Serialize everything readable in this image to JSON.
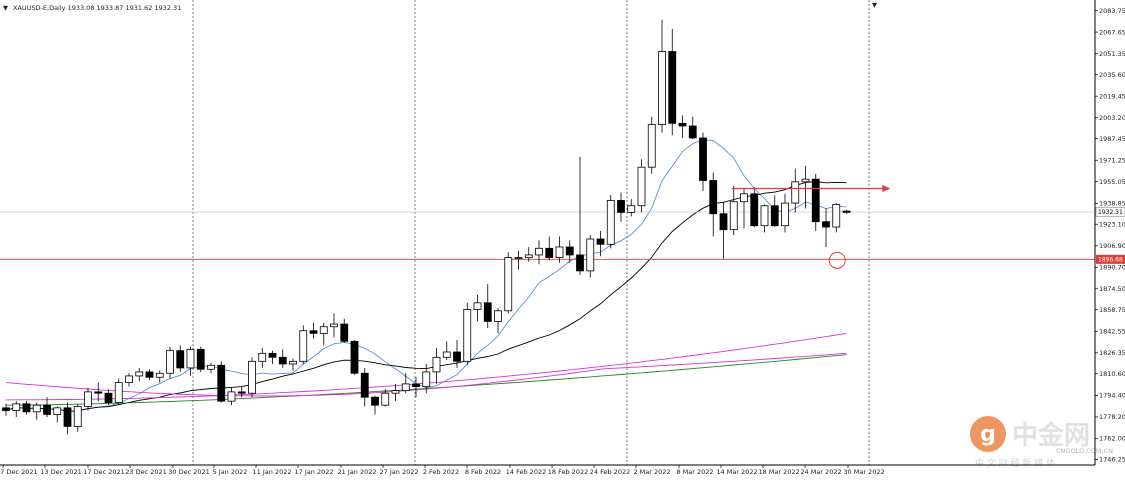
{
  "header": {
    "arrow": "▼",
    "title": "XAUUSD-E,Daily  1933.08 1933.87 1931.62 1932.31"
  },
  "price_tags": {
    "current": "1932.31",
    "support": "1896.68"
  },
  "watermark": {
    "name": "中金网",
    "domain": "CNGOLD.COM.CN",
    "slogan": "中 文 财 经 新 媒 体"
  },
  "colors": {
    "background": "#ffffff",
    "candle": "#000000",
    "sma_fast": "#5b8fd6",
    "sma_slow": "#000000",
    "ma_green": "#1e8a1e",
    "ma_magenta": "#d633d6",
    "support_line": "#e03a3a",
    "logo_orange": "#e8742a"
  },
  "chart_data": {
    "type": "candlestick",
    "symbol": "XAUUSD-E",
    "timeframe": "Daily",
    "ohlc_header": {
      "open": 1933.08,
      "high": 1933.87,
      "low": 1931.62,
      "close": 1932.31
    },
    "y_ticks": [
      2083.75,
      2067.65,
      2051.35,
      2035.6,
      2019.45,
      2003.2,
      1987.45,
      1971.25,
      1955.05,
      1938.85,
      1923.1,
      1906.9,
      1890.7,
      1874.5,
      1858.75,
      1842.55,
      1826.35,
      1810.6,
      1794.4,
      1778.2,
      1762.0,
      1746.25
    ],
    "ylim": [
      1743.5,
      2086.5
    ],
    "x_labels": [
      "7 Dec 2021",
      "13 Dec 2021",
      "17 Dec 2021",
      "23 Dec 2021",
      "30 Dec 2021",
      "5 Jan 2022",
      "11 Jan 2022",
      "17 Jan 2022",
      "21 Jan 2022",
      "27 Jan 2022",
      "2 Feb 2022",
      "8 Feb 2022",
      "14 Feb 2022",
      "18 Feb 2022",
      "24 Feb 2022",
      "2 Mar 2022",
      "8 Mar 2022",
      "14 Mar 2022",
      "18 Mar 2022",
      "24 Mar 2022",
      "30 Mar 2022"
    ],
    "period_separators": [
      "1 Jan 2022",
      "1 Feb 2022",
      "1 Mar 2022",
      "1 Apr 2022"
    ],
    "candles": [
      [
        1785,
        1788,
        1779,
        1783
      ],
      [
        1783,
        1790,
        1778,
        1788
      ],
      [
        1788,
        1790,
        1780,
        1782
      ],
      [
        1782,
        1789,
        1776,
        1787
      ],
      [
        1787,
        1793,
        1778,
        1780
      ],
      [
        1780,
        1786,
        1774,
        1785
      ],
      [
        1785,
        1789,
        1765,
        1771
      ],
      [
        1771,
        1788,
        1767,
        1786
      ],
      [
        1786,
        1800,
        1783,
        1797
      ],
      [
        1797,
        1804,
        1790,
        1796
      ],
      [
        1796,
        1799,
        1787,
        1789
      ],
      [
        1789,
        1807,
        1787,
        1804
      ],
      [
        1804,
        1811,
        1801,
        1809
      ],
      [
        1809,
        1815,
        1805,
        1812
      ],
      [
        1812,
        1814,
        1806,
        1808
      ],
      [
        1808,
        1813,
        1804,
        1811
      ],
      [
        1811,
        1831,
        1807,
        1828
      ],
      [
        1828,
        1832,
        1812,
        1815
      ],
      [
        1815,
        1831,
        1809,
        1829
      ],
      [
        1829,
        1831,
        1812,
        1814
      ],
      [
        1814,
        1819,
        1811,
        1817
      ],
      [
        1817,
        1820,
        1789,
        1790
      ],
      [
        1790,
        1800,
        1787,
        1797
      ],
      [
        1797,
        1801,
        1793,
        1796
      ],
      [
        1796,
        1823,
        1793,
        1820
      ],
      [
        1820,
        1830,
        1815,
        1826
      ],
      [
        1826,
        1828,
        1818,
        1823
      ],
      [
        1823,
        1829,
        1815,
        1818
      ],
      [
        1818,
        1822,
        1813,
        1820
      ],
      [
        1820,
        1847,
        1818,
        1843
      ],
      [
        1843,
        1849,
        1837,
        1841
      ],
      [
        1841,
        1849,
        1832,
        1846
      ],
      [
        1846,
        1856,
        1838,
        1848
      ],
      [
        1848,
        1852,
        1834,
        1835
      ],
      [
        1835,
        1836,
        1810,
        1811
      ],
      [
        1811,
        1815,
        1786,
        1793
      ],
      [
        1793,
        1794,
        1780,
        1787
      ],
      [
        1787,
        1799,
        1786,
        1796
      ],
      [
        1796,
        1803,
        1790,
        1798
      ],
      [
        1798,
        1811,
        1796,
        1803
      ],
      [
        1803,
        1808,
        1793,
        1801
      ],
      [
        1801,
        1818,
        1796,
        1812
      ],
      [
        1812,
        1830,
        1803,
        1823
      ],
      [
        1823,
        1835,
        1821,
        1827
      ],
      [
        1827,
        1836,
        1815,
        1820
      ],
      [
        1820,
        1864,
        1817,
        1859
      ],
      [
        1859,
        1870,
        1850,
        1864
      ],
      [
        1864,
        1878,
        1845,
        1850
      ],
      [
        1850,
        1860,
        1841,
        1858
      ],
      [
        1858,
        1902,
        1856,
        1898
      ],
      [
        1898,
        1903,
        1889,
        1898
      ],
      [
        1898,
        1906,
        1895,
        1900
      ],
      [
        1900,
        1911,
        1893,
        1905
      ],
      [
        1905,
        1914,
        1896,
        1898
      ],
      [
        1898,
        1914,
        1894,
        1906
      ],
      [
        1906,
        1911,
        1894,
        1900
      ],
      [
        1900,
        1974,
        1885,
        1888
      ],
      [
        1888,
        1915,
        1883,
        1912
      ],
      [
        1912,
        1918,
        1899,
        1908
      ],
      [
        1908,
        1945,
        1905,
        1941
      ],
      [
        1941,
        1947,
        1925,
        1932
      ],
      [
        1932,
        1942,
        1929,
        1937
      ],
      [
        1937,
        1972,
        1932,
        1966
      ],
      [
        1966,
        2004,
        1961,
        1998
      ],
      [
        1998,
        2077,
        1992,
        2053
      ],
      [
        2053,
        2070,
        1990,
        1999
      ],
      [
        1999,
        2005,
        1988,
        1997
      ],
      [
        1997,
        2004,
        1987,
        1988
      ],
      [
        1988,
        1992,
        1948,
        1956
      ],
      [
        1956,
        1962,
        1914,
        1931
      ],
      [
        1931,
        1940,
        1897,
        1919
      ],
      [
        1919,
        1952,
        1915,
        1940
      ],
      [
        1940,
        1950,
        1920,
        1946
      ],
      [
        1946,
        1951,
        1921,
        1922
      ],
      [
        1922,
        1938,
        1917,
        1937
      ],
      [
        1937,
        1945,
        1921,
        1922
      ],
      [
        1922,
        1946,
        1917,
        1939
      ],
      [
        1939,
        1965,
        1932,
        1955
      ],
      [
        1955,
        1967,
        1935,
        1957
      ],
      [
        1957,
        1961,
        1918,
        1925
      ],
      [
        1925,
        1935,
        1906,
        1921
      ],
      [
        1921,
        1939,
        1917,
        1938
      ],
      [
        1933,
        1934,
        1931,
        1932
      ]
    ],
    "series": [
      {
        "name": "",
        "type": "line",
        "values": []
      }
    ],
    "horizontal_line": 1896.68,
    "arrow_level": 1950,
    "ellipse_marker": {
      "price": 1896.68
    },
    "grid": false
  }
}
